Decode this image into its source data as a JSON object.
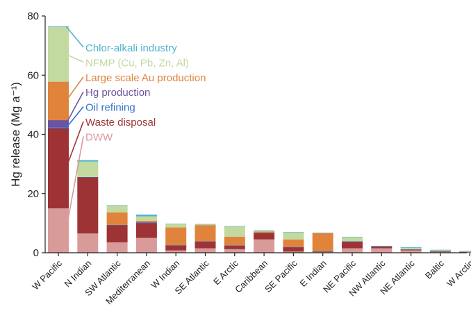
{
  "chart_data": {
    "type": "bar",
    "stacked": true,
    "ylabel": "Hg release (Mg a⁻¹)",
    "ylim": [
      0,
      80
    ],
    "yticks": [
      0,
      20,
      40,
      60,
      80
    ],
    "categories": [
      "W Pacific",
      "N Indian",
      "SW Atlantic",
      "Mediterranean",
      "W Indian",
      "SE Atlantic",
      "E Arctic",
      "Caribbean",
      "SE Pacific",
      "E Indian",
      "NE Pacific",
      "NW Atlantic",
      "NE Atlantic",
      "Baltic",
      "W Arctic"
    ],
    "series": [
      {
        "name": "DWW",
        "color": "#d99a9a",
        "values": [
          15,
          6.5,
          3.5,
          5,
          0.8,
          1.5,
          1.2,
          4.5,
          0.4,
          0.2,
          1.5,
          1.5,
          0.8,
          0.2,
          0.1
        ]
      },
      {
        "name": "Waste disposal",
        "color": "#9e3336",
        "values": [
          27,
          19,
          5.8,
          5,
          1.7,
          2.3,
          1.2,
          2.2,
          1.5,
          0.2,
          2.3,
          0.7,
          0.3,
          0.2,
          0.1
        ]
      },
      {
        "name": "Oil refining",
        "color": "#2e6fd0",
        "values": [
          0.3,
          0.1,
          0.1,
          0.1,
          0.05,
          0.05,
          0.05,
          0.05,
          0.05,
          0.05,
          0.05,
          0.05,
          0.05,
          0.05,
          0.05
        ]
      },
      {
        "name": "Hg production",
        "color": "#6b54a0",
        "values": [
          2.5,
          0,
          0,
          0.2,
          0,
          0,
          0,
          0,
          0,
          0,
          0,
          0,
          0,
          0,
          0
        ]
      },
      {
        "name": "Large scale Au production",
        "color": "#e0843c",
        "values": [
          13,
          0,
          4.2,
          0.5,
          6,
          5.5,
          3,
          0.4,
          2.5,
          6.2,
          0,
          0,
          0,
          0.2,
          0.2
        ]
      },
      {
        "name": "NFMP (Cu, Pb, Zn, Al)",
        "color": "#c2d9a0",
        "values": [
          18.5,
          5.2,
          2.4,
          1.5,
          1.2,
          0.3,
          3.5,
          0.4,
          2.5,
          0.1,
          1.5,
          0,
          0.5,
          0.3,
          0.1
        ]
      },
      {
        "name": "Chlor-alkali industry",
        "color": "#4fb3cf",
        "values": [
          0.2,
          0.5,
          0.1,
          0.6,
          0.05,
          0.05,
          0.05,
          0.05,
          0.05,
          0.05,
          0.05,
          0.05,
          0.2,
          0.05,
          0.05
        ]
      }
    ],
    "legend_placement": "top-right of first bar, with leader lines"
  }
}
